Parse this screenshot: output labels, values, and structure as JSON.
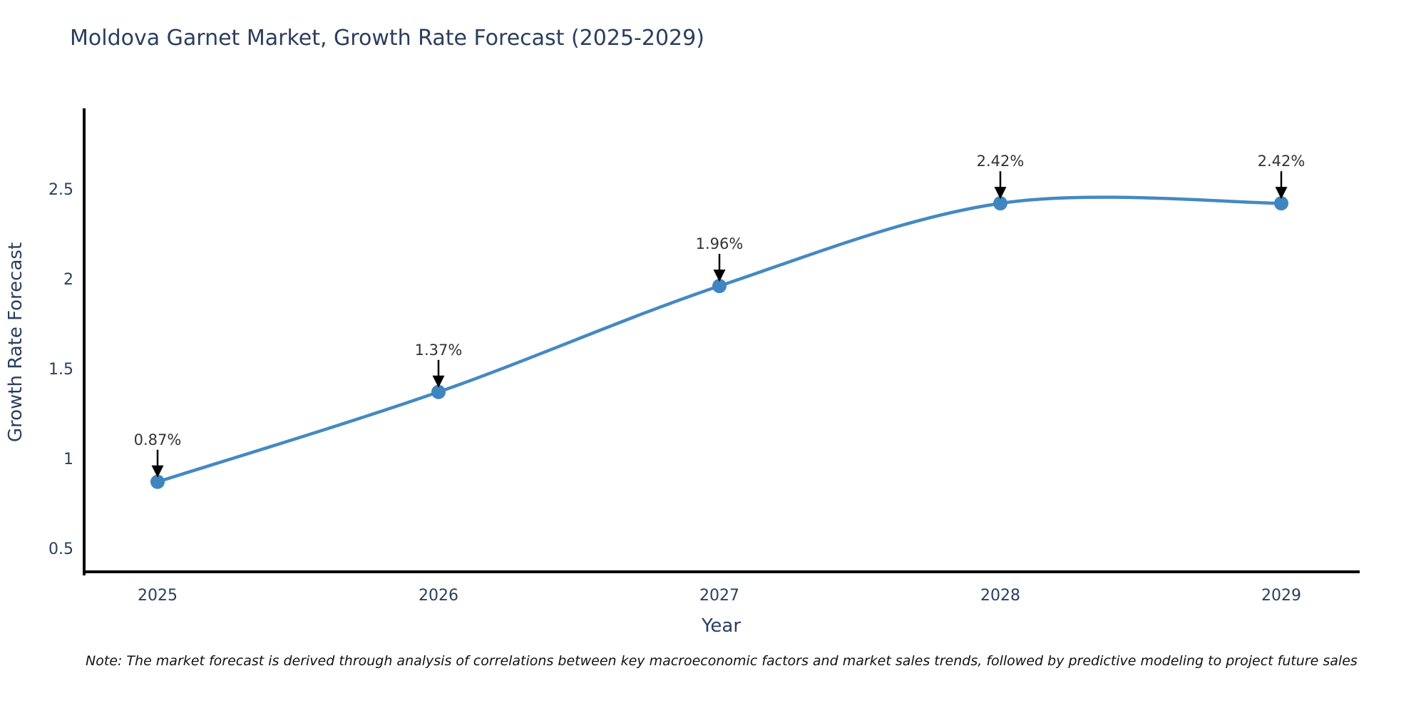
{
  "title": "Moldova Garnet Market, Growth Rate Forecast (2025-2029)",
  "note": "Note: The market forecast is derived through analysis of correlations between key macroeconomic factors and market sales trends, followed by predictive modeling to project future sales",
  "chart_data": {
    "type": "line",
    "title": "Moldova Garnet Market, Growth Rate Forecast (2025-2029)",
    "xlabel": "Year",
    "ylabel": "Growth Rate Forecast",
    "x": [
      2025,
      2026,
      2027,
      2028,
      2029
    ],
    "categories": [
      "2025",
      "2026",
      "2027",
      "2028",
      "2029"
    ],
    "values": [
      0.87,
      1.37,
      1.96,
      2.42,
      2.42
    ],
    "point_labels": [
      "0.87%",
      "1.37%",
      "1.96%",
      "2.42%",
      "2.42%"
    ],
    "yticks": [
      0.5,
      1,
      1.5,
      2,
      2.5
    ],
    "ytick_labels": [
      "0.5",
      "1",
      "1.5",
      "2",
      "2.5"
    ],
    "ylim": [
      0.35,
      2.95
    ],
    "xlim": [
      2024.74,
      2029.28
    ],
    "line_shape": "spline",
    "grid": false,
    "legend": "none",
    "line_color": "#4489c2",
    "marker_color": "#3f85bf",
    "axis_color": "#000000",
    "tick_color": "#2a3f5f",
    "annotation_text_color": "#333333",
    "annotation_arrow_color": "#000000"
  }
}
